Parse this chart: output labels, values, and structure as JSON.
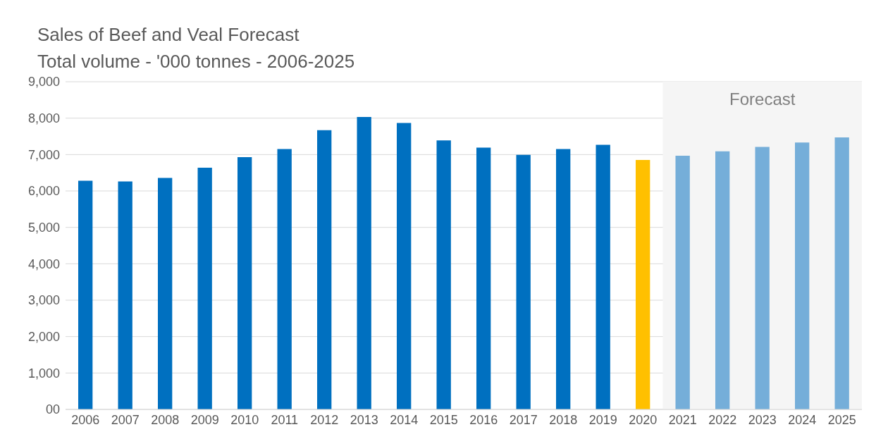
{
  "chart_data": {
    "type": "bar",
    "title": "Sales of Beef and Veal Forecast",
    "subtitle": "Total volume - '000 tonnes - 2006-2025",
    "categories": [
      "2006",
      "2007",
      "2008",
      "2009",
      "2010",
      "2011",
      "2012",
      "2013",
      "2014",
      "2015",
      "2016",
      "2017",
      "2018",
      "2019",
      "2020",
      "2021",
      "2022",
      "2023",
      "2024",
      "2025"
    ],
    "values": [
      6280,
      6260,
      6360,
      6640,
      6930,
      7150,
      7670,
      8030,
      7870,
      7390,
      7190,
      6990,
      7150,
      7270,
      6850,
      6970,
      7090,
      7210,
      7330,
      7470
    ],
    "colors": [
      "#0070c0",
      "#0070c0",
      "#0070c0",
      "#0070c0",
      "#0070c0",
      "#0070c0",
      "#0070c0",
      "#0070c0",
      "#0070c0",
      "#0070c0",
      "#0070c0",
      "#0070c0",
      "#0070c0",
      "#0070c0",
      "#ffc000",
      "#75aed9",
      "#75aed9",
      "#75aed9",
      "#75aed9",
      "#75aed9"
    ],
    "ylim": [
      0,
      9000
    ],
    "yticks": [
      {
        "value": 0,
        "label": "00"
      },
      {
        "value": 1000,
        "label": "1,000"
      },
      {
        "value": 2000,
        "label": "2,000"
      },
      {
        "value": 3000,
        "label": "3,000"
      },
      {
        "value": 4000,
        "label": "4,000"
      },
      {
        "value": 5000,
        "label": "5,000"
      },
      {
        "value": 6000,
        "label": "6,000"
      },
      {
        "value": 7000,
        "label": "7,000"
      },
      {
        "value": 8000,
        "label": "8,000"
      },
      {
        "value": 9000,
        "label": "9,000"
      }
    ],
    "bands": [
      {
        "axis": "x",
        "from": "2021",
        "to": "2025",
        "label": "Forecast",
        "color": "#f5f5f5"
      }
    ],
    "grid": "y"
  }
}
